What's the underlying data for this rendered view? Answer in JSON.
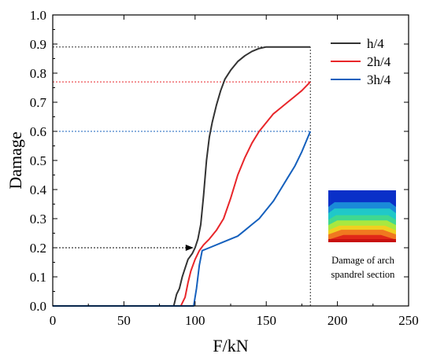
{
  "chart_data": {
    "type": "line",
    "xlabel": "F/kN",
    "ylabel": "Damage",
    "xlim": [
      0,
      250
    ],
    "ylim": [
      0,
      1.0
    ],
    "xticks": [
      0,
      50,
      100,
      150,
      200,
      250
    ],
    "xtick_labels": [
      "0",
      "50",
      "100",
      "150",
      "200",
      "250"
    ],
    "yticks": [
      0,
      0.1,
      0.2,
      0.3,
      0.4,
      0.5,
      0.6,
      0.7,
      0.8,
      0.9,
      1.0
    ],
    "ytick_labels": [
      "0.0",
      "0.1",
      "0.2",
      "0.3",
      "0.4",
      "0.5",
      "0.6",
      "0.7",
      "0.8",
      "0.9",
      "1.0"
    ],
    "grid": false,
    "legend_position": "top-right",
    "series": [
      {
        "name": "h/4",
        "color": "#333333",
        "x": [
          0,
          85,
          87,
          89,
          91,
          93,
          95,
          98,
          100,
          102,
          104,
          106,
          108,
          110,
          112,
          115,
          118,
          121,
          125,
          130,
          135,
          140,
          145,
          150,
          155,
          160,
          170,
          181
        ],
        "y": [
          0,
          0,
          0.04,
          0.06,
          0.1,
          0.13,
          0.16,
          0.18,
          0.2,
          0.23,
          0.28,
          0.38,
          0.5,
          0.58,
          0.63,
          0.69,
          0.74,
          0.78,
          0.81,
          0.84,
          0.86,
          0.875,
          0.885,
          0.89,
          0.89,
          0.89,
          0.89,
          0.89
        ]
      },
      {
        "name": "2h/4",
        "color": "#e8262a",
        "x": [
          0,
          90,
          93,
          95,
          97,
          100,
          103,
          106,
          110,
          115,
          120,
          125,
          130,
          135,
          140,
          145,
          150,
          155,
          160,
          165,
          170,
          175,
          181
        ],
        "y": [
          0,
          0,
          0.03,
          0.08,
          0.12,
          0.16,
          0.19,
          0.21,
          0.23,
          0.26,
          0.3,
          0.37,
          0.45,
          0.51,
          0.56,
          0.6,
          0.63,
          0.66,
          0.68,
          0.7,
          0.72,
          0.74,
          0.77
        ]
      },
      {
        "name": "3h/4",
        "color": "#1560bd",
        "x": [
          0,
          99,
          101,
          103,
          105,
          110,
          120,
          130,
          135,
          140,
          145,
          150,
          155,
          160,
          165,
          170,
          175,
          181
        ],
        "y": [
          0,
          0,
          0.06,
          0.14,
          0.19,
          0.2,
          0.22,
          0.24,
          0.26,
          0.28,
          0.3,
          0.33,
          0.36,
          0.4,
          0.44,
          0.48,
          0.53,
          0.6
        ]
      }
    ],
    "reference_lines": [
      {
        "axis": "y",
        "value": 0.89,
        "x_to": 181,
        "color": "#333333"
      },
      {
        "axis": "y",
        "value": 0.77,
        "x_to": 181,
        "color": "#e8262a"
      },
      {
        "axis": "y",
        "value": 0.6,
        "x_to": 181,
        "color": "#1560bd"
      },
      {
        "axis": "x",
        "value": 181,
        "y_to": 0.89,
        "color": "#333333"
      }
    ],
    "annotation_arrow": {
      "y": 0.2,
      "x_from": 0,
      "x_to": 100
    },
    "inset": {
      "caption_line1": "Damage  of arch",
      "caption_line2": "spandrel section",
      "colors": [
        "#0a30c8",
        "#1a8ad8",
        "#20c8c8",
        "#40d890",
        "#a8e840",
        "#f0d020",
        "#f07820",
        "#e02818"
      ]
    }
  }
}
